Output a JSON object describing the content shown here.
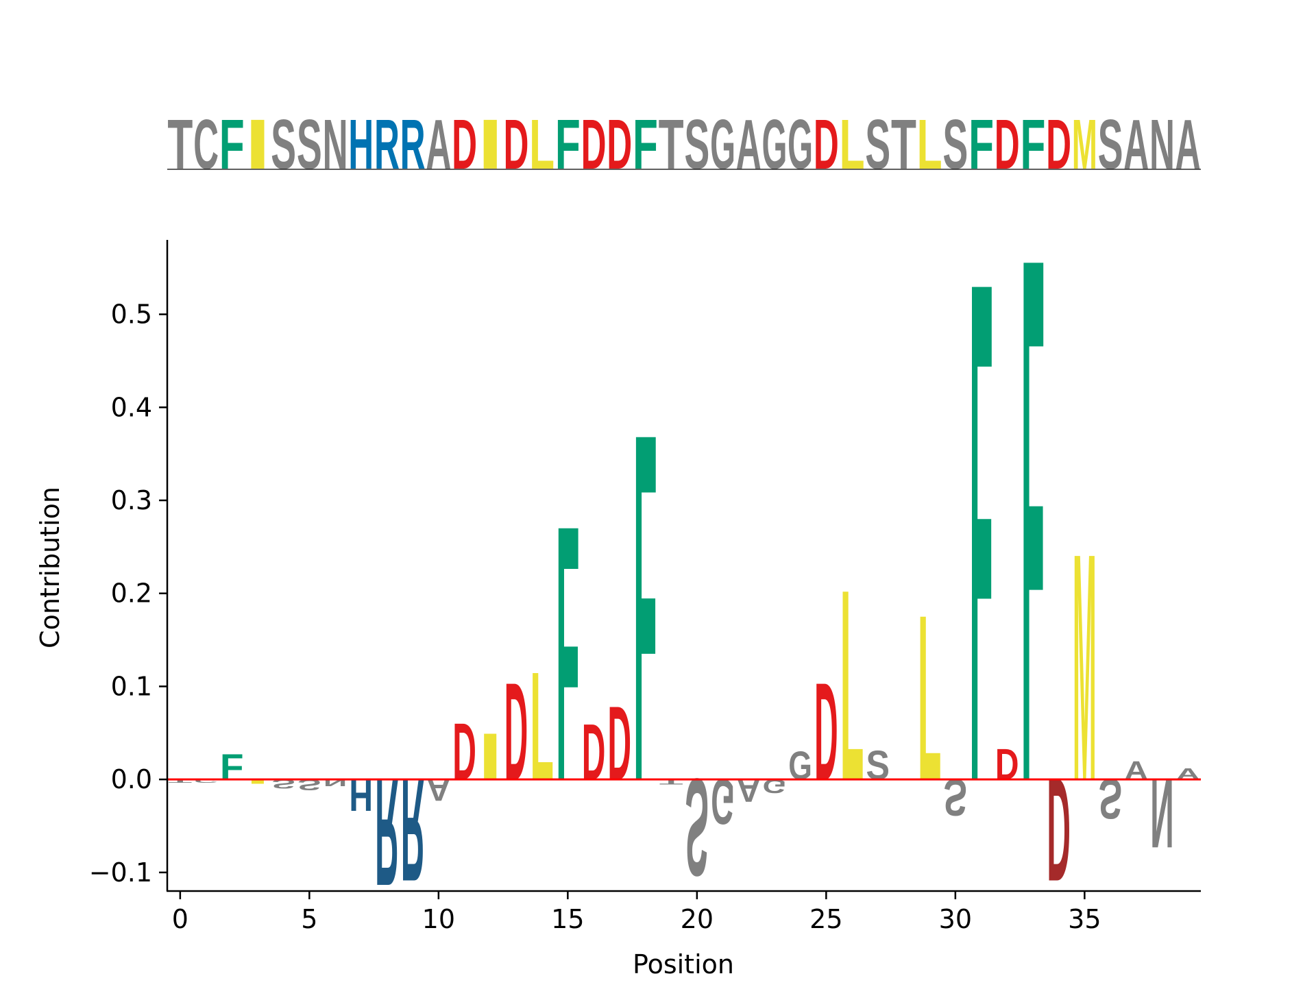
{
  "chart_data": [
    {
      "type": "sequence_logo",
      "sequence": "TCFISSNHRRADIDLFDDFTSGAGGDLSTLSFDFDMSANA"
    },
    {
      "type": "bar",
      "style": "sequence_logo",
      "xlabel": "Position",
      "ylabel": "Contribution",
      "xlim": [
        -0.5,
        39.5
      ],
      "ylim": [
        -0.12,
        0.58
      ],
      "xticks": [
        0,
        5,
        10,
        15,
        20,
        25,
        30,
        35
      ],
      "xtick_labels": [
        "0",
        "5",
        "10",
        "15",
        "20",
        "25",
        "30",
        "35"
      ],
      "yticks": [
        -0.1,
        0.0,
        0.1,
        0.2,
        0.3,
        0.4,
        0.5
      ],
      "ytick_labels": [
        "−0.1",
        "0.0",
        "0.1",
        "0.2",
        "0.3",
        "0.4",
        "0.5"
      ],
      "zero_line_color": "#ff0000",
      "grid": false,
      "categories": [
        "T",
        "C",
        "F",
        "I",
        "S",
        "S",
        "N",
        "H",
        "R",
        "R",
        "A",
        "D",
        "I",
        "D",
        "L",
        "F",
        "D",
        "D",
        "F",
        "T",
        "S",
        "G",
        "A",
        "G",
        "G",
        "D",
        "L",
        "S",
        "T",
        "L",
        "S",
        "F",
        "D",
        "F",
        "D",
        "M",
        "S",
        "A",
        "N",
        "A"
      ],
      "values": [
        -0.004,
        -0.004,
        0.028,
        -0.005,
        -0.01,
        -0.012,
        -0.008,
        -0.035,
        -0.118,
        -0.113,
        -0.024,
        0.062,
        0.051,
        0.107,
        0.119,
        0.281,
        0.061,
        0.081,
        0.383,
        -0.006,
        -0.107,
        -0.05,
        -0.025,
        -0.015,
        0.031,
        0.107,
        0.21,
        0.032,
        -0.001,
        0.182,
        -0.04,
        0.551,
        0.034,
        0.578,
        -0.113,
        0.25,
        -0.044,
        0.02,
        -0.076,
        0.012
      ],
      "colors": {
        "polar_neutral": "#808080",
        "aromatic": "#029e73",
        "hydrophobic": "#ece133",
        "basic": "#0173b2",
        "acidic": "#e41a1c",
        "negative_basic": "#1e5a86",
        "negative_acidic": "#a52a2a"
      }
    }
  ]
}
